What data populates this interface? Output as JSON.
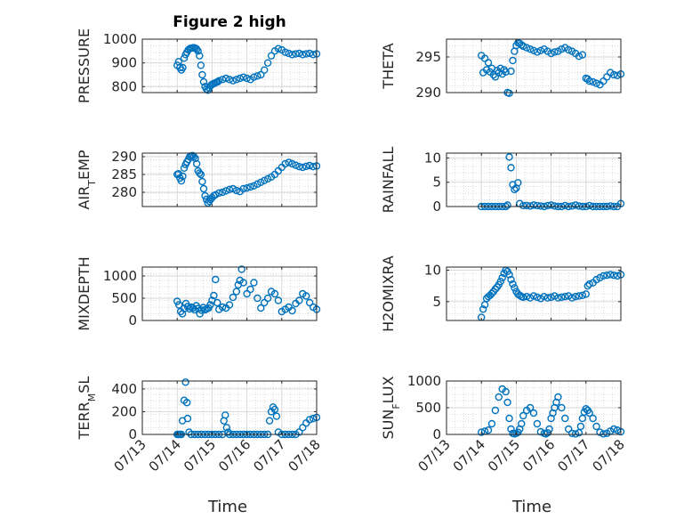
{
  "chart_data": {
    "type": "scatter",
    "title": "Figure 2 high",
    "xlabel": "Time",
    "marker_color": "#0072BD",
    "xlim": [
      "07/13",
      "07/18"
    ],
    "xticks": [
      "07/13",
      "07/14",
      "07/15",
      "07/16",
      "07/17",
      "07/18"
    ],
    "grid": true,
    "panels": [
      {
        "ylabel": "PRESSURE",
        "ylim": [
          775,
          1000
        ],
        "yticks": [
          800,
          900,
          1000
        ],
        "x": [
          1.0,
          1.04,
          1.08,
          1.12,
          1.16,
          1.2,
          1.24,
          1.28,
          1.32,
          1.36,
          1.4,
          1.44,
          1.48,
          1.52,
          1.56,
          1.6,
          1.64,
          1.68,
          1.72,
          1.76,
          1.8,
          1.84,
          1.88,
          1.92,
          1.96,
          2.0,
          2.04,
          2.08,
          2.12,
          2.16,
          2.2,
          2.3,
          2.4,
          2.5,
          2.6,
          2.7,
          2.8,
          2.9,
          3.0,
          3.1,
          3.2,
          3.3,
          3.4,
          3.5,
          3.6,
          3.7,
          3.8,
          3.9,
          4.0,
          4.1,
          4.2,
          4.3,
          4.4,
          4.5,
          4.6,
          4.7,
          4.8,
          4.9,
          5.0
        ],
        "y": [
          890,
          905,
          880,
          870,
          880,
          920,
          935,
          945,
          955,
          960,
          962,
          963,
          964,
          962,
          958,
          950,
          930,
          890,
          850,
          820,
          800,
          790,
          785,
          795,
          805,
          810,
          812,
          815,
          818,
          820,
          825,
          830,
          835,
          830,
          825,
          830,
          835,
          840,
          835,
          830,
          840,
          845,
          850,
          870,
          900,
          930,
          950,
          960,
          955,
          945,
          940,
          935,
          938,
          940,
          935,
          938,
          940,
          935,
          938
        ]
      },
      {
        "ylabel": "THETA",
        "ylim": [
          290,
          297.5
        ],
        "yticks": [
          290,
          295
        ],
        "x": [
          1.0,
          1.05,
          1.1,
          1.15,
          1.2,
          1.25,
          1.3,
          1.35,
          1.4,
          1.45,
          1.5,
          1.55,
          1.6,
          1.65,
          1.7,
          1.75,
          1.8,
          1.85,
          1.9,
          1.95,
          2.0,
          2.05,
          2.1,
          2.15,
          2.2,
          2.3,
          2.4,
          2.5,
          2.6,
          2.7,
          2.8,
          2.9,
          3.0,
          3.1,
          3.2,
          3.3,
          3.4,
          3.5,
          3.6,
          3.7,
          3.8,
          3.9,
          4.0,
          4.05,
          4.1,
          4.2,
          4.3,
          4.4,
          4.5,
          4.6,
          4.7,
          4.8,
          4.9,
          5.0
        ],
        "y": [
          295.2,
          292.8,
          294.8,
          293.2,
          294.2,
          292.9,
          293.4,
          292.5,
          292.2,
          293.1,
          292.8,
          293.4,
          292.6,
          293.2,
          292.9,
          290.0,
          289.9,
          293.0,
          294.5,
          295.8,
          296.6,
          297.0,
          296.9,
          296.7,
          296.5,
          296.3,
          296.1,
          295.9,
          295.7,
          295.9,
          296.1,
          295.8,
          295.5,
          295.7,
          295.8,
          296.1,
          296.3,
          296.0,
          295.8,
          295.5,
          295.1,
          295.3,
          292.0,
          291.9,
          291.6,
          291.5,
          291.3,
          291.1,
          291.6,
          292.2,
          292.8,
          292.5,
          292.4,
          292.6
        ]
      },
      {
        "ylabel": "AIR_TEMP",
        "ylim": [
          276,
          291
        ],
        "yticks": [
          280,
          285,
          290
        ],
        "x": [
          1.0,
          1.04,
          1.08,
          1.12,
          1.16,
          1.2,
          1.24,
          1.28,
          1.32,
          1.36,
          1.4,
          1.44,
          1.48,
          1.52,
          1.56,
          1.6,
          1.64,
          1.68,
          1.72,
          1.76,
          1.8,
          1.84,
          1.88,
          1.92,
          1.96,
          2.0,
          2.05,
          2.1,
          2.2,
          2.3,
          2.4,
          2.5,
          2.6,
          2.7,
          2.8,
          2.9,
          3.0,
          3.1,
          3.2,
          3.3,
          3.4,
          3.5,
          3.6,
          3.7,
          3.8,
          3.9,
          4.0,
          4.1,
          4.2,
          4.3,
          4.4,
          4.5,
          4.6,
          4.7,
          4.8,
          4.9,
          5.0
        ],
        "y": [
          285,
          285.2,
          284,
          283.2,
          284.5,
          286.8,
          287.8,
          288.5,
          289.2,
          290,
          290.2,
          290.3,
          290,
          289.5,
          288,
          286,
          285.4,
          285,
          283,
          281,
          279,
          278,
          277,
          277.5,
          278,
          278.5,
          279,
          279.3,
          279.8,
          280,
          280.4,
          280.8,
          281,
          280.5,
          280.2,
          281,
          281.2,
          281.5,
          281.8,
          282.3,
          282.8,
          283.3,
          283.8,
          284.3,
          285,
          286,
          287,
          288,
          288.4,
          288,
          287.6,
          287.2,
          287,
          287.3,
          287.5,
          287.2,
          287.4
        ]
      },
      {
        "ylabel": "RAINFALL",
        "ylim": [
          0,
          11
        ],
        "yticks": [
          0,
          5,
          10
        ],
        "x": [
          1.0,
          1.1,
          1.2,
          1.3,
          1.4,
          1.5,
          1.6,
          1.7,
          1.75,
          1.8,
          1.85,
          1.9,
          1.95,
          2.0,
          2.05,
          2.1,
          2.2,
          2.3,
          2.4,
          2.5,
          2.6,
          2.7,
          2.8,
          2.9,
          3.0,
          3.1,
          3.2,
          3.3,
          3.4,
          3.5,
          3.6,
          3.7,
          3.8,
          3.9,
          4.0,
          4.1,
          4.2,
          4.3,
          4.4,
          4.5,
          4.6,
          4.7,
          4.8,
          4.9,
          5.0
        ],
        "y": [
          0,
          0,
          0,
          0,
          0,
          0,
          0,
          0,
          0.3,
          10.2,
          8,
          4.5,
          3.5,
          3.8,
          4.9,
          0.6,
          0.2,
          0.2,
          0.1,
          0.3,
          0.2,
          0.1,
          0,
          0.2,
          0.3,
          0.1,
          0,
          0,
          0.2,
          0,
          0.1,
          0.3,
          0.1,
          0,
          0,
          0.2,
          0,
          0,
          0,
          0,
          0,
          0.1,
          0,
          0,
          0.6
        ]
      },
      {
        "ylabel": "MIXDEPTH",
        "ylim": [
          0,
          1200
        ],
        "yticks": [
          0,
          500,
          1000
        ],
        "x": [
          1.0,
          1.05,
          1.1,
          1.15,
          1.2,
          1.25,
          1.3,
          1.35,
          1.4,
          1.45,
          1.5,
          1.55,
          1.6,
          1.65,
          1.7,
          1.75,
          1.8,
          1.85,
          1.9,
          1.95,
          2.0,
          2.05,
          2.1,
          2.15,
          2.2,
          2.3,
          2.4,
          2.5,
          2.6,
          2.7,
          2.75,
          2.8,
          2.85,
          2.9,
          3.0,
          3.1,
          3.2,
          3.3,
          3.4,
          3.5,
          3.6,
          3.7,
          3.8,
          3.9,
          4.0,
          4.1,
          4.2,
          4.3,
          4.4,
          4.5,
          4.6,
          4.7,
          4.8,
          4.9,
          5.0
        ],
        "y": [
          430,
          350,
          200,
          150,
          270,
          380,
          310,
          260,
          300,
          280,
          240,
          330,
          270,
          150,
          230,
          290,
          240,
          260,
          280,
          350,
          450,
          560,
          920,
          400,
          250,
          300,
          280,
          350,
          520,
          650,
          800,
          900,
          1150,
          850,
          600,
          700,
          850,
          500,
          280,
          400,
          500,
          650,
          600,
          450,
          200,
          250,
          300,
          220,
          380,
          450,
          600,
          550,
          400,
          300,
          250
        ]
      },
      {
        "ylabel": "H2OMIXRA",
        "ylim": [
          2,
          10.5
        ],
        "yticks": [
          5,
          10
        ],
        "x": [
          1.0,
          1.05,
          1.1,
          1.15,
          1.2,
          1.25,
          1.3,
          1.35,
          1.4,
          1.45,
          1.5,
          1.55,
          1.6,
          1.65,
          1.7,
          1.75,
          1.8,
          1.85,
          1.9,
          1.95,
          2.0,
          2.05,
          2.1,
          2.15,
          2.2,
          2.3,
          2.4,
          2.5,
          2.6,
          2.7,
          2.8,
          2.9,
          3.0,
          3.1,
          3.2,
          3.3,
          3.4,
          3.5,
          3.6,
          3.7,
          3.8,
          3.9,
          4.0,
          4.05,
          4.1,
          4.2,
          4.3,
          4.4,
          4.5,
          4.6,
          4.7,
          4.8,
          4.9,
          5.0
        ],
        "y": [
          2.5,
          3.8,
          4.5,
          5.5,
          5.8,
          6,
          6.3,
          6.6,
          7,
          7.3,
          7.7,
          8.2,
          8.8,
          9.5,
          10,
          9.8,
          9.3,
          8.5,
          7.8,
          7.2,
          6.6,
          6.2,
          6,
          5.8,
          5.7,
          5.8,
          5.6,
          5.9,
          5.7,
          5.5,
          5.8,
          5.6,
          5.7,
          5.9,
          5.6,
          5.7,
          5.8,
          5.9,
          5.6,
          5.8,
          5.9,
          6,
          6.2,
          7.5,
          7.8,
          8,
          8.5,
          8.8,
          9.1,
          9.2,
          9.3,
          9.2,
          9.1,
          9.3
        ]
      },
      {
        "ylabel": "TERR_MSL",
        "ylim": [
          0,
          470
        ],
        "yticks": [
          0,
          200,
          400
        ],
        "x": [
          1.0,
          1.04,
          1.08,
          1.12,
          1.15,
          1.2,
          1.24,
          1.28,
          1.3,
          1.34,
          1.4,
          1.5,
          1.6,
          1.7,
          1.8,
          1.9,
          2.0,
          2.1,
          2.2,
          2.3,
          2.34,
          2.38,
          2.42,
          2.46,
          2.5,
          2.6,
          2.7,
          2.8,
          2.9,
          3.0,
          3.1,
          3.2,
          3.3,
          3.4,
          3.5,
          3.6,
          3.65,
          3.7,
          3.75,
          3.8,
          3.85,
          3.9,
          4.0,
          4.1,
          4.2,
          4.3,
          4.4,
          4.5,
          4.6,
          4.7,
          4.8,
          4.9,
          5.0
        ],
        "y": [
          0,
          0,
          0,
          0,
          120,
          300,
          460,
          280,
          140,
          20,
          0,
          0,
          0,
          0,
          0,
          0,
          0,
          0,
          0,
          0,
          120,
          170,
          60,
          20,
          0,
          0,
          0,
          0,
          0,
          0,
          0,
          0,
          0,
          0,
          0,
          0,
          120,
          200,
          240,
          220,
          160,
          20,
          0,
          0,
          0,
          0,
          0,
          20,
          60,
          100,
          130,
          140,
          150
        ]
      },
      {
        "ylabel": "SUN_FLUX",
        "ylim": [
          0,
          1000
        ],
        "yticks": [
          0,
          500,
          1000
        ],
        "x": [
          1.0,
          1.1,
          1.2,
          1.3,
          1.4,
          1.5,
          1.6,
          1.7,
          1.75,
          1.8,
          1.85,
          1.9,
          1.95,
          2.0,
          2.05,
          2.1,
          2.15,
          2.2,
          2.3,
          2.4,
          2.5,
          2.6,
          2.7,
          2.8,
          2.85,
          2.9,
          2.95,
          3.0,
          3.05,
          3.1,
          3.15,
          3.2,
          3.3,
          3.4,
          3.5,
          3.6,
          3.7,
          3.8,
          3.85,
          3.9,
          3.95,
          4.0,
          4.05,
          4.1,
          4.2,
          4.3,
          4.4,
          4.5,
          4.6,
          4.7,
          4.8,
          4.9,
          5.0
        ],
        "y": [
          40,
          60,
          80,
          200,
          450,
          700,
          850,
          800,
          600,
          300,
          100,
          20,
          10,
          20,
          40,
          100,
          200,
          350,
          450,
          500,
          400,
          200,
          50,
          20,
          10,
          30,
          100,
          300,
          400,
          500,
          600,
          700,
          500,
          300,
          100,
          20,
          10,
          30,
          150,
          300,
          420,
          480,
          450,
          400,
          300,
          150,
          40,
          10,
          20,
          60,
          100,
          80,
          50
        ]
      }
    ]
  }
}
